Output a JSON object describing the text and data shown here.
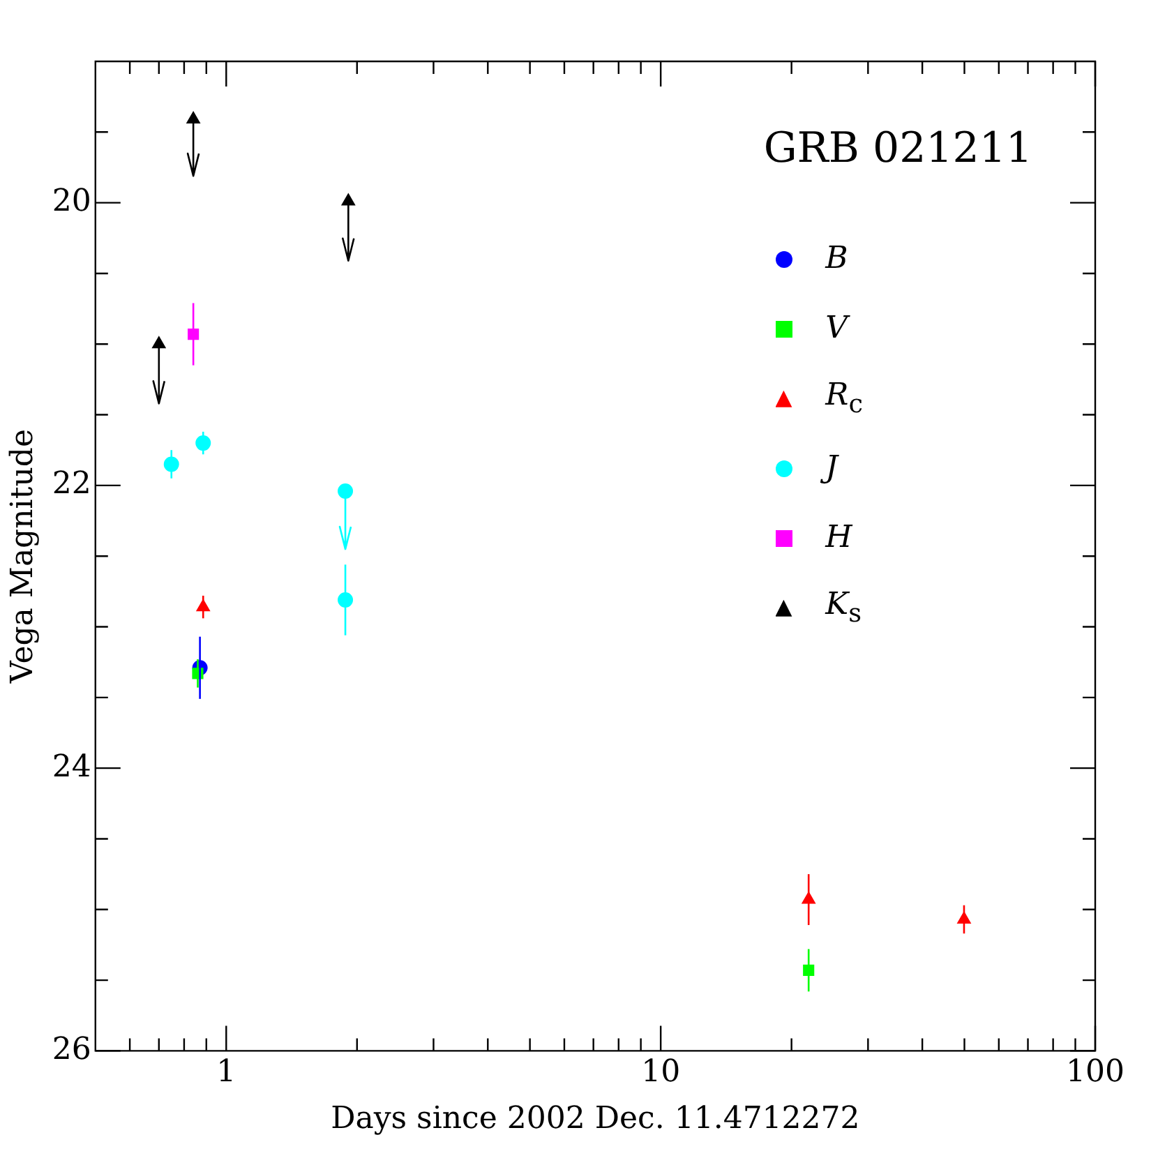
{
  "chart_data": {
    "type": "scatter",
    "title": "GRB 021211",
    "xlabel": "Days since 2002 Dec. 11.4712272",
    "ylabel": "Vega Magnitude",
    "log": "x",
    "grid": false,
    "legend": "top right",
    "xlim": [
      0.5,
      100
    ],
    "xticks": [
      {
        "value": 0.6,
        "label": null
      },
      {
        "value": 0.7,
        "label": null
      },
      {
        "value": 0.8,
        "label": null
      },
      {
        "value": 0.9,
        "label": null
      },
      1,
      {
        "value": 2,
        "label": null
      },
      {
        "value": 3,
        "label": null
      },
      {
        "value": 4,
        "label": null
      },
      {
        "value": 5,
        "label": null
      },
      {
        "value": 6,
        "label": null
      },
      {
        "value": 7,
        "label": null
      },
      {
        "value": 8,
        "label": null
      },
      {
        "value": 9,
        "label": null
      },
      10,
      {
        "value": 20,
        "label": null
      },
      {
        "value": 30,
        "label": null
      },
      {
        "value": 40,
        "label": null
      },
      {
        "value": 50,
        "label": null
      },
      {
        "value": 60,
        "label": null
      },
      {
        "value": 70,
        "label": null
      },
      {
        "value": 80,
        "label": null
      },
      {
        "value": 90,
        "label": null
      },
      100
    ],
    "ylim": [
      26,
      19
    ],
    "yticks": [
      {
        "value": 19.5,
        "label": null
      },
      20,
      {
        "value": 20.5,
        "label": null
      },
      {
        "value": 21,
        "label": null
      },
      {
        "value": 21.5,
        "label": null
      },
      22,
      {
        "value": 22.5,
        "label": null
      },
      {
        "value": 23,
        "label": null
      },
      {
        "value": 23.5,
        "label": null
      },
      24,
      {
        "value": 24.5,
        "label": null
      },
      {
        "value": 25,
        "label": null
      },
      {
        "value": 25.5,
        "label": null
      },
      26
    ],
    "series": [
      {
        "name": "B",
        "color": "#0000ff",
        "marker": "circle",
        "x": [
          0.87
        ],
        "values": [
          23.29
        ],
        "errors": [
          0.22
        ]
      },
      {
        "name": "V",
        "color": "#00ff00",
        "marker": "square",
        "x": [
          0.86,
          21.9
        ],
        "values": [
          23.33,
          25.43
        ],
        "errors": [
          0.1,
          0.15
        ]
      },
      {
        "name": "R$_{c}$",
        "color": "#ff0000",
        "marker": "triangle",
        "x": [
          0.885,
          21.9,
          49.9
        ],
        "values": [
          22.86,
          24.93,
          25.07
        ],
        "errors": [
          0.08,
          0.18,
          0.1
        ]
      },
      {
        "name": "J",
        "color": "#00ffff",
        "marker": "circle",
        "x": [
          0.748,
          0.885,
          1.88,
          1.88
        ],
        "values": [
          21.85,
          21.7,
          22.81,
          22.04
        ],
        "errors": [
          0.1,
          0.08,
          0.25,
          [
            22.04,
            22.45
          ]
        ]
      },
      {
        "name": "H",
        "color": "#ff00ff",
        "marker": "square",
        "x": [
          0.84
        ],
        "values": [
          20.93
        ],
        "errors": [
          0.22
        ]
      },
      {
        "name": "K$_{s}$",
        "color": "#000000",
        "marker": "triangle",
        "x": [
          0.7,
          0.84,
          1.91
        ],
        "values": [
          21.0,
          19.41,
          19.99
        ],
        "errors": [
          [
            21.0,
            21.42
          ],
          [
            19.41,
            19.81
          ],
          [
            19.99,
            20.41
          ]
        ]
      }
    ]
  }
}
